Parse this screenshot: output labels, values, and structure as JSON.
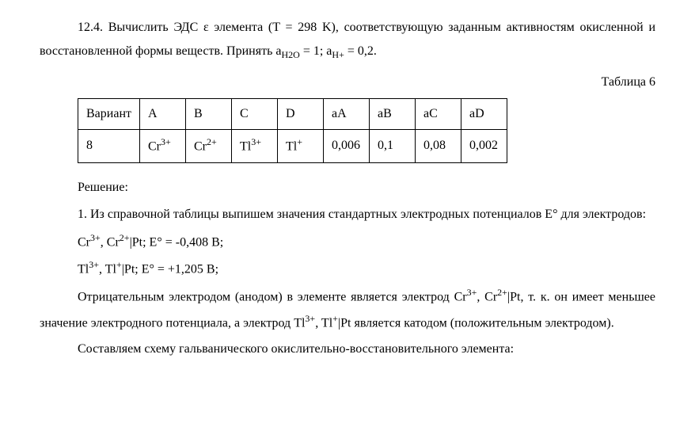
{
  "problem": {
    "number": "12.4.",
    "text_part1": "Вычислить ЭДС ε элемента (T = 298 K), соответствующую заданным активностям окисленной и восстановленной формы веществ. Принять a",
    "sub1": "H2O",
    "text_part2": " = 1; a",
    "sub2": "H+",
    "text_part3": " = 0,2."
  },
  "table": {
    "label": "Таблица 6",
    "headers": [
      "Вариант",
      "A",
      "B",
      "C",
      "D",
      "aA",
      "aB",
      "aC",
      "aD"
    ],
    "row": {
      "variant": "8",
      "A": "Cr",
      "A_sup": "3+",
      "B": "Cr",
      "B_sup": "2+",
      "C": "Tl",
      "C_sup": "3+",
      "D": "Tl",
      "D_sup": "+",
      "aA": "0,006",
      "aB": "0,1",
      "aC": "0,08",
      "aD": "0,002"
    }
  },
  "solution": {
    "title": "Решение:",
    "step1": "1. Из справочной таблицы выпишем значения стандартных электродных потенциалов E° для электродов:",
    "line1_a": "Cr",
    "line1_sup1": "3+",
    "line1_b": ", Cr",
    "line1_sup2": "2+",
    "line1_c": "|Pt; E° = -0,408 В;",
    "line2_a": "Tl",
    "line2_sup1": "3+",
    "line2_b": ", Tl",
    "line2_sup2": "+",
    "line2_c": "|Pt; E° = +1,205 В;",
    "para2_a": "Отрицательным электродом (анодом) в элементе является электрод Cr",
    "para2_sup1": "3+",
    "para2_b": ", Cr",
    "para2_sup2": "2+",
    "para2_c": "|Pt, т. к. он имеет меньшее значение электродного потенциала, а электрод Tl",
    "para2_sup3": "3+",
    "para2_d": ", Tl",
    "para2_sup4": "+",
    "para2_e": "|Pt является катодом (положительным электродом).",
    "para3": "Составляем схему гальванического окислительно-восстановительного элемента:"
  }
}
